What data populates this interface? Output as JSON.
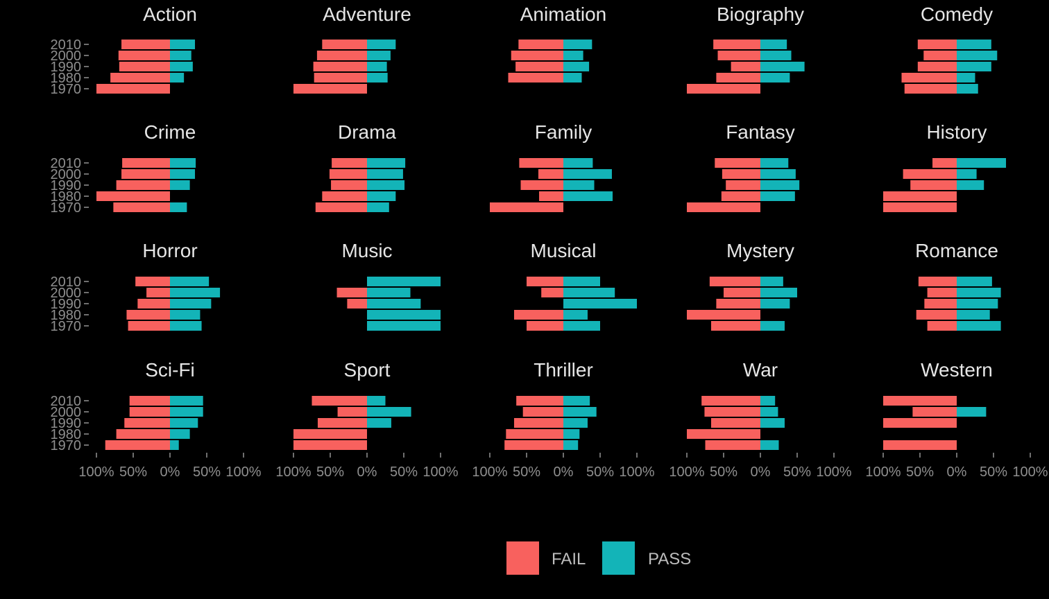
{
  "chart_data": {
    "type": "bar",
    "layout": "small-multiples-diverging",
    "legend_position": "bottom",
    "grid": false,
    "x_axis_tick_labels": [
      "100%",
      "50%",
      "0%",
      "50%",
      "100%"
    ],
    "xlim": [
      -1,
      1
    ],
    "y_axis_tick_labels": [
      "1970",
      "1980",
      "1990",
      "2000",
      "2010"
    ],
    "decades": [
      1970,
      1980,
      1990,
      2000,
      2010
    ],
    "series": [
      {
        "name": "FAIL",
        "color": "#F8615E"
      },
      {
        "name": "PASS",
        "color": "#13B4B8"
      }
    ],
    "facets": [
      {
        "title": "Action",
        "fail": [
          1.0,
          0.81,
          0.69,
          0.7,
          0.66
        ],
        "pass": [
          0.0,
          0.19,
          0.31,
          0.29,
          0.34
        ]
      },
      {
        "title": "Adventure",
        "fail": [
          1.0,
          0.72,
          0.73,
          0.68,
          0.61
        ],
        "pass": [
          0.0,
          0.28,
          0.27,
          0.32,
          0.39
        ]
      },
      {
        "title": "Animation",
        "fail": [
          0.0,
          0.75,
          0.65,
          0.71,
          0.61
        ],
        "pass": [
          0.0,
          0.25,
          0.35,
          0.27,
          0.39
        ]
      },
      {
        "title": "Biography",
        "fail": [
          1.0,
          0.6,
          0.4,
          0.58,
          0.64
        ],
        "pass": [
          0.0,
          0.4,
          0.6,
          0.42,
          0.36
        ]
      },
      {
        "title": "Comedy",
        "fail": [
          0.71,
          0.75,
          0.53,
          0.45,
          0.53
        ],
        "pass": [
          0.29,
          0.25,
          0.47,
          0.55,
          0.47
        ]
      },
      {
        "title": "Crime",
        "fail": [
          0.77,
          1.0,
          0.73,
          0.66,
          0.65
        ],
        "pass": [
          0.23,
          0.0,
          0.27,
          0.34,
          0.35
        ]
      },
      {
        "title": "Drama",
        "fail": [
          0.7,
          0.61,
          0.49,
          0.51,
          0.48
        ],
        "pass": [
          0.3,
          0.39,
          0.51,
          0.49,
          0.52
        ]
      },
      {
        "title": "Family",
        "fail": [
          1.0,
          0.33,
          0.58,
          0.34,
          0.6
        ],
        "pass": [
          0.0,
          0.67,
          0.42,
          0.66,
          0.4
        ]
      },
      {
        "title": "Fantasy",
        "fail": [
          1.0,
          0.53,
          0.47,
          0.52,
          0.62
        ],
        "pass": [
          0.0,
          0.47,
          0.53,
          0.48,
          0.38
        ]
      },
      {
        "title": "History",
        "fail": [
          1.0,
          1.0,
          0.63,
          0.73,
          0.33
        ],
        "pass": [
          0.0,
          0.0,
          0.37,
          0.27,
          0.67
        ]
      },
      {
        "title": "Horror",
        "fail": [
          0.57,
          0.59,
          0.44,
          0.32,
          0.47
        ],
        "pass": [
          0.43,
          0.41,
          0.56,
          0.68,
          0.53
        ]
      },
      {
        "title": "Music",
        "fail": [
          0.0,
          0.0,
          0.27,
          0.41,
          0.0
        ],
        "pass": [
          1.0,
          1.0,
          0.73,
          0.59,
          1.0
        ]
      },
      {
        "title": "Musical",
        "fail": [
          0.5,
          0.67,
          0.0,
          0.3,
          0.5
        ],
        "pass": [
          0.5,
          0.33,
          1.0,
          0.7,
          0.5
        ]
      },
      {
        "title": "Mystery",
        "fail": [
          0.67,
          1.0,
          0.6,
          0.5,
          0.69
        ],
        "pass": [
          0.33,
          0.0,
          0.4,
          0.5,
          0.31
        ]
      },
      {
        "title": "Romance",
        "fail": [
          0.4,
          0.55,
          0.44,
          0.4,
          0.52
        ],
        "pass": [
          0.6,
          0.45,
          0.56,
          0.6,
          0.48
        ]
      },
      {
        "title": "Sci-Fi",
        "fail": [
          0.88,
          0.73,
          0.62,
          0.55,
          0.55
        ],
        "pass": [
          0.12,
          0.27,
          0.38,
          0.45,
          0.45
        ]
      },
      {
        "title": "Sport",
        "fail": [
          1.0,
          1.0,
          0.67,
          0.4,
          0.75
        ],
        "pass": [
          0.0,
          0.0,
          0.33,
          0.6,
          0.25
        ]
      },
      {
        "title": "Thriller",
        "fail": [
          0.8,
          0.78,
          0.67,
          0.55,
          0.64
        ],
        "pass": [
          0.2,
          0.22,
          0.33,
          0.45,
          0.36
        ]
      },
      {
        "title": "War",
        "fail": [
          0.75,
          1.0,
          0.67,
          0.76,
          0.8
        ],
        "pass": [
          0.25,
          0.0,
          0.33,
          0.24,
          0.2
        ]
      },
      {
        "title": "Western",
        "fail": [
          1.0,
          0.0,
          1.0,
          0.6,
          1.0
        ],
        "pass": [
          0.0,
          0.0,
          0.0,
          0.4,
          0.0
        ]
      }
    ]
  },
  "legend": {
    "items": [
      {
        "label": "FAIL",
        "color": "#F8615E"
      },
      {
        "label": "PASS",
        "color": "#13B4B8"
      }
    ]
  }
}
